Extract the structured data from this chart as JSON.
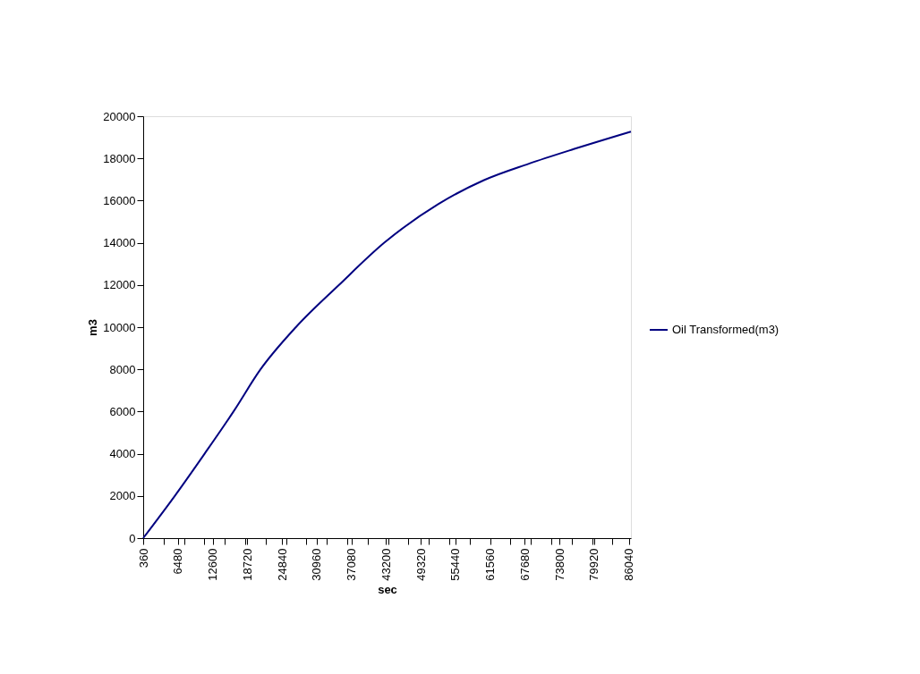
{
  "chart_data": {
    "type": "line",
    "xlabel": "sec",
    "ylabel": "m3",
    "x": [
      360,
      5930,
      11190,
      16290,
      21060,
      27300,
      34900,
      42880,
      52400,
      60400,
      68300,
      76300,
      86400
    ],
    "series": [
      {
        "name": "Oil Transformed(m3)",
        "color": "#000080",
        "values": [
          0,
          2000,
          4000,
          6000,
          8000,
          10000,
          12000,
          14000,
          15830,
          16960,
          17740,
          18440,
          19270
        ]
      }
    ],
    "xlim": [
      360,
      86400
    ],
    "xticks": [
      360,
      {
        "value": 3960,
        "label": null
      },
      6480,
      {
        "value": 7560,
        "label": null
      },
      {
        "value": 11160,
        "label": null
      },
      12600,
      {
        "value": 14760,
        "label": null
      },
      18720,
      {
        "value": 18360,
        "label": null
      },
      {
        "value": 21960,
        "label": null
      },
      24840,
      {
        "value": 25560,
        "label": null
      },
      {
        "value": 29160,
        "label": null
      },
      30960,
      {
        "value": 32760,
        "label": null
      },
      {
        "value": 36360,
        "label": null
      },
      37080,
      {
        "value": 39960,
        "label": null
      },
      43200,
      {
        "value": 43560,
        "label": null
      },
      {
        "value": 47160,
        "label": null
      },
      49320,
      {
        "value": 50760,
        "label": null
      },
      {
        "value": 54360,
        "label": null
      },
      55440,
      {
        "value": 57960,
        "label": null
      },
      61560,
      {
        "value": 61560,
        "label": null
      },
      {
        "value": 65160,
        "label": null
      },
      67680,
      {
        "value": 68760,
        "label": null
      },
      {
        "value": 72360,
        "label": null
      },
      73800,
      {
        "value": 75960,
        "label": null
      },
      79920,
      {
        "value": 79560,
        "label": null
      },
      {
        "value": 83160,
        "label": null
      },
      86040
    ],
    "ylim": [
      0,
      20000
    ],
    "yticks": [
      0,
      2000,
      4000,
      6000,
      8000,
      10000,
      12000,
      14000,
      16000,
      18000,
      20000
    ],
    "grid": false,
    "legend": "right",
    "marker": "none",
    "line_style": "solid"
  }
}
